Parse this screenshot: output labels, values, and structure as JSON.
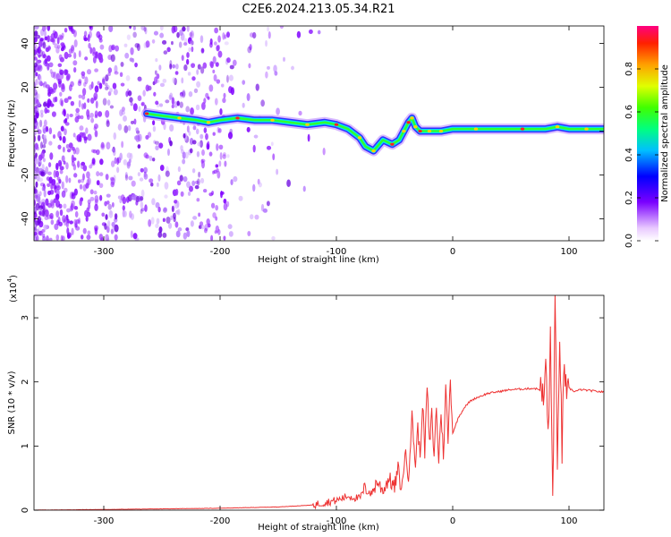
{
  "title": "C2E6.2024.213.05.34.R21",
  "chart_data": [
    {
      "type": "heatmap",
      "xlabel": "Height of straight line (km)",
      "ylabel": "Frequency (Hz)",
      "xlim": [
        -360,
        130
      ],
      "ylim": [
        -50,
        48
      ],
      "xticks": [
        "-300",
        "-200",
        "-100",
        "0",
        "100"
      ],
      "yticks": [
        "40",
        "20",
        "0",
        "-20",
        "-40"
      ],
      "colorbar": {
        "label": "Normalized spectral amplitude",
        "range": [
          0.0,
          1.0
        ],
        "ticks": [
          "0.0",
          "0.2",
          "0.4",
          "0.6",
          "0.8"
        ]
      },
      "ridge": {
        "x": [
          -263,
          -250,
          -235,
          -220,
          -210,
          -200,
          -185,
          -170,
          -155,
          -140,
          -125,
          -110,
          -100,
          -90,
          -80,
          -75,
          -68,
          -60,
          -52,
          -46,
          -42,
          -38,
          -35,
          -32,
          -28,
          -20,
          -10,
          0,
          20,
          40,
          60,
          80,
          90,
          100,
          115,
          130
        ],
        "freq": [
          8,
          7,
          6,
          5,
          4,
          5,
          6,
          5,
          5,
          4,
          3,
          4,
          3,
          1,
          -3,
          -7,
          -9,
          -4,
          -6,
          -4,
          0,
          4,
          6,
          2,
          0,
          0,
          0,
          1,
          1,
          1,
          1,
          1,
          2,
          1,
          1,
          1
        ]
      }
    },
    {
      "type": "line",
      "xlabel": "Height of straight line (km)",
      "ylabel": "SNR (10 * v/v)",
      "multiplier": "(x10",
      "multiplier_exp": "4",
      "xlim": [
        -360,
        130
      ],
      "ylim": [
        0,
        3.35
      ],
      "xticks": [
        "-300",
        "-200",
        "-100",
        "0",
        "100"
      ],
      "yticks": [
        "3",
        "2",
        "1",
        "0"
      ],
      "color": "#ee3333",
      "series": [
        {
          "x": [
            -360,
            -300,
            -250,
            -200,
            -150,
            -120,
            -110,
            -100,
            -90,
            -80,
            -75,
            -70,
            -65,
            -60,
            -55,
            -50,
            -47,
            -44,
            -41,
            -38,
            -35,
            -32,
            -30,
            -28,
            -26,
            -24,
            -22,
            -20,
            -18,
            -16,
            -14,
            -12,
            -10,
            -8,
            -6,
            -4,
            -2,
            0,
            5,
            10,
            15,
            20,
            30,
            40,
            50,
            60,
            70,
            75,
            78,
            80,
            82,
            84,
            86,
            88,
            90,
            92,
            94,
            96,
            98,
            100,
            105,
            110,
            120,
            130
          ],
          "y": [
            0.0,
            0.01,
            0.02,
            0.03,
            0.05,
            0.08,
            0.12,
            0.15,
            0.22,
            0.18,
            0.35,
            0.25,
            0.45,
            0.3,
            0.5,
            0.35,
            0.65,
            0.3,
            0.9,
            0.55,
            1.45,
            0.7,
            1.3,
            0.8,
            1.7,
            0.9,
            1.95,
            1.0,
            1.5,
            0.85,
            1.6,
            0.75,
            1.55,
            0.85,
            1.9,
            1.1,
            2.05,
            1.2,
            1.45,
            1.6,
            1.7,
            1.75,
            1.82,
            1.85,
            1.88,
            1.89,
            1.9,
            1.88,
            1.7,
            2.25,
            1.2,
            2.6,
            0.2,
            3.25,
            0.5,
            2.85,
            0.9,
            2.4,
            1.6,
            1.9,
            1.85,
            1.88,
            1.86,
            1.84
          ]
        }
      ]
    }
  ]
}
